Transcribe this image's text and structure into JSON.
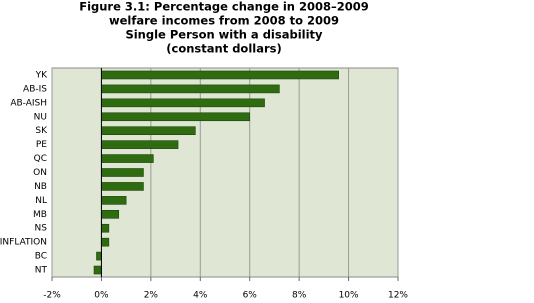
{
  "chart_data": {
    "type": "hbar",
    "title": [
      "Figure 3.1: Percentage change in 2008–2009",
      "welfare incomes from 2008 to 2009",
      "Single Person with a disability",
      "(constant dollars)"
    ],
    "categories": [
      "YK",
      "AB-IS",
      "AB-AISH",
      "NU",
      "SK",
      "PE",
      "QC",
      "ON",
      "NB",
      "NL",
      "MB",
      "NS",
      "INFLATION",
      "BC",
      "NT"
    ],
    "values": [
      9.6,
      7.2,
      6.6,
      6.0,
      3.8,
      3.1,
      2.1,
      1.7,
      1.7,
      1.0,
      0.7,
      0.3,
      0.3,
      -0.2,
      -0.3
    ],
    "color": "#2f6b10",
    "xlim": [
      -2,
      12
    ],
    "xticks": [
      {
        "value": -2,
        "label": "-2%"
      },
      {
        "value": 0,
        "label": "0%"
      },
      {
        "value": 2,
        "label": "2%"
      },
      {
        "value": 4,
        "label": "4%"
      },
      {
        "value": 6,
        "label": "6%"
      },
      {
        "value": 8,
        "label": "8%"
      },
      {
        "value": 10,
        "label": "10%"
      },
      {
        "value": 12,
        "label": "12%"
      }
    ],
    "grid": true
  }
}
